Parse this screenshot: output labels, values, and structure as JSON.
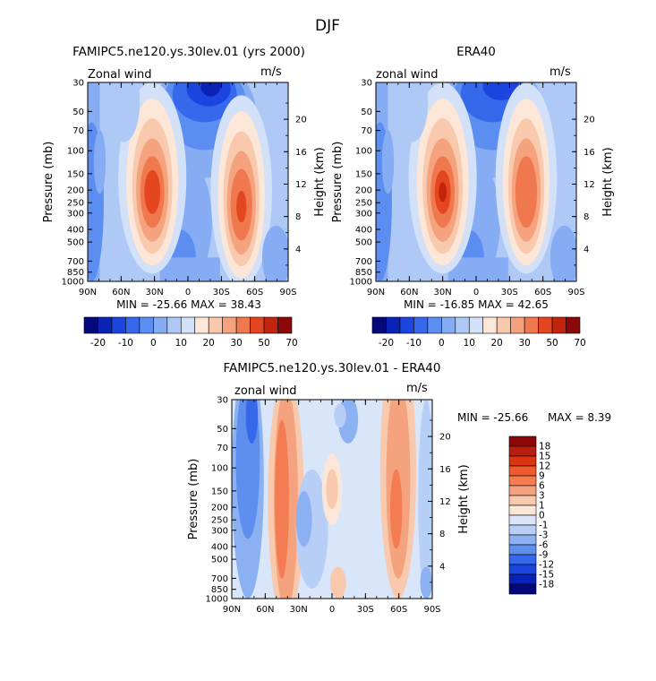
{
  "figure_title": "DJF",
  "chart_data": [
    {
      "type": "heatmap",
      "id": "model",
      "title": "FAMIPC5.ne120.ys.30lev.01 (yrs 2000)",
      "variable": "Zonal wind",
      "units": "m/s",
      "xlabel": "",
      "ylabel": "Pressure (mb)",
      "ylabel_right": "Height (km)",
      "x_ticks": [
        "90N",
        "60N",
        "30N",
        "0",
        "30S",
        "60S",
        "90S"
      ],
      "y_ticks": [
        "30",
        "50",
        "70",
        "100",
        "150",
        "200",
        "250",
        "300",
        "400",
        "500",
        "700",
        "850",
        "1000"
      ],
      "height_ticks": [
        "20",
        "16",
        "12",
        "8",
        "4"
      ],
      "stats": "MIN = -25.66   MAX =  38.43",
      "colorbar_labels": [
        "-20",
        "-10",
        "0",
        "10",
        "20",
        "30",
        "50",
        "70"
      ],
      "jets": [
        {
          "lat": 32,
          "pressure": 200,
          "peak": 38.43
        },
        {
          "lat": -48,
          "pressure": 250,
          "peak": 33
        }
      ],
      "minimum": {
        "lat": -15,
        "pressure": 30,
        "value": -25.66
      }
    },
    {
      "type": "heatmap",
      "id": "obs",
      "title": "ERA40",
      "variable": "zonal wind",
      "units": "m/s",
      "xlabel": "",
      "ylabel": "Pressure (mb)",
      "ylabel_right": "Height (km)",
      "x_ticks": [
        "90N",
        "60N",
        "30N",
        "0",
        "30S",
        "60S",
        "90S"
      ],
      "y_ticks": [
        "30",
        "50",
        "70",
        "100",
        "150",
        "200",
        "250",
        "300",
        "400",
        "500",
        "700",
        "850",
        "1000"
      ],
      "height_ticks": [
        "20",
        "16",
        "12",
        "8",
        "4"
      ],
      "stats": "MIN = -16.85   MAX =  42.65",
      "colorbar_labels": [
        "-20",
        "-10",
        "0",
        "10",
        "20",
        "30",
        "50",
        "70"
      ],
      "jets": [
        {
          "lat": 30,
          "pressure": 200,
          "peak": 42.65
        },
        {
          "lat": -45,
          "pressure": 200,
          "peak": 30
        }
      ],
      "minimum": {
        "lat": -15,
        "pressure": 30,
        "value": -16.85
      }
    },
    {
      "type": "heatmap",
      "id": "diff",
      "title": "FAMIPC5.ne120.ys.30lev.01 - ERA40",
      "variable": "zonal wind",
      "units": "m/s",
      "xlabel": "",
      "ylabel": "Pressure (mb)",
      "ylabel_right": "Height (km)",
      "x_ticks": [
        "90N",
        "60N",
        "30N",
        "0",
        "30S",
        "60S",
        "90S"
      ],
      "y_ticks": [
        "30",
        "50",
        "70",
        "100",
        "150",
        "200",
        "250",
        "300",
        "400",
        "500",
        "700",
        "850",
        "1000"
      ],
      "height_ticks": [
        "20",
        "16",
        "12",
        "8",
        "4"
      ],
      "stats_min": "MIN = -25.66",
      "stats_max": "MAX =   8.39",
      "colorbar_labels": [
        "18",
        "15",
        "12",
        "9",
        "6",
        "3",
        "1",
        "0",
        "-1",
        "-3",
        "-6",
        "-9",
        "-12",
        "-15",
        "-18"
      ]
    }
  ],
  "colors": {
    "full_scale": [
      "#03087a",
      "#0a22b5",
      "#1c45e0",
      "#3568ea",
      "#5b8ef0",
      "#86acf3",
      "#afc9f6",
      "#d2e1f8",
      "#fbe6d7",
      "#f9c9ad",
      "#f5a27f",
      "#f0784e",
      "#e4471f",
      "#c2240d",
      "#8c0707"
    ],
    "diff_scale": [
      "#8c0707",
      "#b81d0d",
      "#dc3410",
      "#f0592c",
      "#f47c52",
      "#f5a27f",
      "#f9c9ad",
      "#fbe6d7",
      "#d9e5f8",
      "#b7cff7",
      "#8cb1f2",
      "#5f8fee",
      "#3568ea",
      "#1c45e0",
      "#0a22b5",
      "#03087a"
    ]
  }
}
